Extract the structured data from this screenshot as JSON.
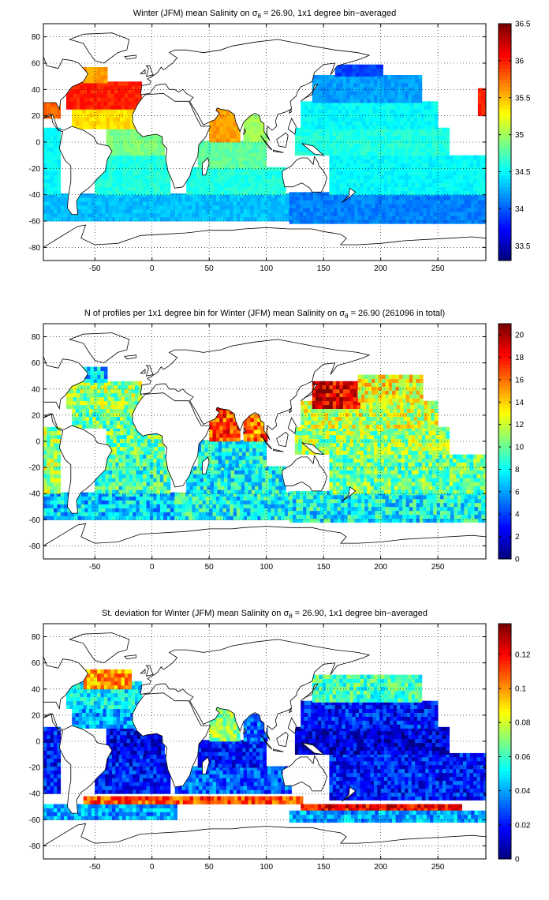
{
  "chart_data": [
    {
      "type": "heatmap",
      "title": "Winter (JFM) mean Salinity on σθ = 26.90, 1x1 degree bin−averaged",
      "title_parts": {
        "pre": "Winter (JFM) mean Salinity on ",
        "sym": "σ",
        "sub": "θ",
        "post": " = 26.90, 1x1 degree bin−averaged"
      },
      "xlim": [
        -95,
        292
      ],
      "ylim": [
        -90,
        90
      ],
      "xticks": [
        -50,
        0,
        50,
        100,
        150,
        200,
        250
      ],
      "yticks": [
        -80,
        -60,
        -40,
        -20,
        0,
        20,
        40,
        60,
        80
      ],
      "grid": true,
      "colorbar": {
        "min": 33.3,
        "max": 36.5,
        "ticks": [
          33.5,
          34,
          34.5,
          35,
          35.5,
          36,
          36.5
        ],
        "tick_labels": [
          "33.5",
          "34",
          "34.5",
          "35",
          "35.5",
          "36",
          "36.5"
        ]
      },
      "regions": [
        {
          "x0": -95,
          "x1": 20,
          "y0": -60,
          "y1": -40,
          "value": 34.3
        },
        {
          "x0": -50,
          "x1": 15,
          "y0": -40,
          "y1": -10,
          "value": 34.6
        },
        {
          "x0": -40,
          "x1": 10,
          "y0": -10,
          "y1": 10,
          "value": 34.9
        },
        {
          "x0": -95,
          "x1": -80,
          "y0": -40,
          "y1": 10,
          "value": 34.5
        },
        {
          "x0": -70,
          "x1": -10,
          "y0": 10,
          "y1": 25,
          "value": 35.4
        },
        {
          "x0": -75,
          "x1": -10,
          "y0": 25,
          "y1": 45,
          "value": 36.0
        },
        {
          "x0": -60,
          "x1": -40,
          "y0": 45,
          "y1": 55,
          "value": 35.6
        },
        {
          "x0": -95,
          "x1": -80,
          "y0": 18,
          "y1": 28,
          "value": 35.8
        },
        {
          "x0": 20,
          "x1": 120,
          "y0": -60,
          "y1": -40,
          "value": 34.3
        },
        {
          "x0": 30,
          "x1": 115,
          "y0": -40,
          "y1": -20,
          "value": 34.6
        },
        {
          "x0": 40,
          "x1": 100,
          "y0": -20,
          "y1": 0,
          "value": 34.8
        },
        {
          "x0": 50,
          "x1": 75,
          "y0": 0,
          "y1": 25,
          "value": 35.6
        },
        {
          "x0": 80,
          "x1": 100,
          "y0": 0,
          "y1": 20,
          "value": 35.0
        },
        {
          "x0": 120,
          "x1": 292,
          "y0": -62,
          "y1": -40,
          "value": 34.1
        },
        {
          "x0": 155,
          "x1": 292,
          "y0": -40,
          "y1": -10,
          "value": 34.5
        },
        {
          "x0": 125,
          "x1": 260,
          "y0": -10,
          "y1": 10,
          "value": 34.6
        },
        {
          "x0": 130,
          "x1": 250,
          "y0": 10,
          "y1": 30,
          "value": 34.5
        },
        {
          "x0": 140,
          "x1": 235,
          "y0": 30,
          "y1": 50,
          "value": 34.2
        },
        {
          "x0": 160,
          "x1": 200,
          "y0": 50,
          "y1": 58,
          "value": 33.9
        },
        {
          "x0": 285,
          "x1": 292,
          "y0": 20,
          "y1": 40,
          "value": 36.0
        }
      ]
    },
    {
      "type": "heatmap",
      "title": "N of profiles per 1x1 degree bin for Winter (JFM) mean Salinity on σθ = 26.90 (261096 in total)",
      "title_parts": {
        "pre": "N of profiles per 1x1 degree bin for Winter (JFM) mean Salinity on ",
        "sym": "σ",
        "sub": "θ",
        "post": " = 26.90 (261096 in total)"
      },
      "xlim": [
        -95,
        292
      ],
      "ylim": [
        -90,
        90
      ],
      "xticks": [
        -50,
        0,
        50,
        100,
        150,
        200,
        250
      ],
      "yticks": [
        -80,
        -60,
        -40,
        -20,
        0,
        20,
        40,
        60,
        80
      ],
      "grid": true,
      "colorbar": {
        "min": 0,
        "max": 21,
        "ticks": [
          0,
          2,
          4,
          6,
          8,
          10,
          12,
          14,
          16,
          18,
          20
        ],
        "tick_labels": [
          "0",
          "2",
          "4",
          "6",
          "8",
          "10",
          "12",
          "14",
          "16",
          "18",
          "20"
        ]
      },
      "regions": [
        {
          "x0": -95,
          "x1": 20,
          "y0": -60,
          "y1": -40,
          "value": 7
        },
        {
          "x0": -50,
          "x1": 15,
          "y0": -40,
          "y1": -10,
          "value": 9
        },
        {
          "x0": -40,
          "x1": 10,
          "y0": -10,
          "y1": 10,
          "value": 10
        },
        {
          "x0": -95,
          "x1": -80,
          "y0": -40,
          "y1": 10,
          "value": 11
        },
        {
          "x0": -70,
          "x1": -10,
          "y0": 10,
          "y1": 25,
          "value": 10
        },
        {
          "x0": -75,
          "x1": -10,
          "y0": 25,
          "y1": 45,
          "value": 11
        },
        {
          "x0": -60,
          "x1": -40,
          "y0": 45,
          "y1": 55,
          "value": 7
        },
        {
          "x0": 20,
          "x1": 120,
          "y0": -60,
          "y1": -40,
          "value": 8
        },
        {
          "x0": 30,
          "x1": 115,
          "y0": -40,
          "y1": -20,
          "value": 8
        },
        {
          "x0": 40,
          "x1": 100,
          "y0": -20,
          "y1": 0,
          "value": 8
        },
        {
          "x0": 50,
          "x1": 75,
          "y0": 0,
          "y1": 25,
          "value": 17
        },
        {
          "x0": 80,
          "x1": 100,
          "y0": 0,
          "y1": 20,
          "value": 16
        },
        {
          "x0": 120,
          "x1": 292,
          "y0": -62,
          "y1": -40,
          "value": 8
        },
        {
          "x0": 155,
          "x1": 292,
          "y0": -40,
          "y1": -10,
          "value": 10
        },
        {
          "x0": 125,
          "x1": 260,
          "y0": -10,
          "y1": 10,
          "value": 11
        },
        {
          "x0": 130,
          "x1": 250,
          "y0": 10,
          "y1": 30,
          "value": 12
        },
        {
          "x0": 140,
          "x1": 180,
          "y0": 25,
          "y1": 45,
          "value": 19
        },
        {
          "x0": 180,
          "x1": 235,
          "y0": 30,
          "y1": 50,
          "value": 13
        }
      ]
    },
    {
      "type": "heatmap",
      "title": "St. deviation for Winter (JFM) mean Salinity on σθ = 26.90, 1x1 degree bin−averaged",
      "title_parts": {
        "pre": "St. deviation for Winter (JFM) mean Salinity on ",
        "sym": "σ",
        "sub": "θ",
        "post": " = 26.90, 1x1 degree bin−averaged"
      },
      "xlim": [
        -95,
        292
      ],
      "ylim": [
        -90,
        90
      ],
      "xticks": [
        -50,
        0,
        50,
        100,
        150,
        200,
        250
      ],
      "yticks": [
        -80,
        -60,
        -40,
        -20,
        0,
        20,
        40,
        60,
        80
      ],
      "grid": true,
      "colorbar": {
        "min": 0,
        "max": 0.138,
        "ticks": [
          0,
          0.02,
          0.04,
          0.06,
          0.08,
          0.1,
          0.12
        ],
        "tick_labels": [
          "0",
          "0.02",
          "0.04",
          "0.06",
          "0.08",
          "0.1",
          "0.12"
        ]
      },
      "regions": [
        {
          "x0": -95,
          "x1": 20,
          "y0": -60,
          "y1": -48,
          "value": 0.04
        },
        {
          "x0": -60,
          "x1": 130,
          "y0": -48,
          "y1": -42,
          "value": 0.11
        },
        {
          "x0": 130,
          "x1": 270,
          "y0": -54,
          "y1": -48,
          "value": 0.12
        },
        {
          "x0": -50,
          "x1": 15,
          "y0": -40,
          "y1": -10,
          "value": 0.02
        },
        {
          "x0": -40,
          "x1": 10,
          "y0": -10,
          "y1": 10,
          "value": 0.015
        },
        {
          "x0": -95,
          "x1": -80,
          "y0": -40,
          "y1": 10,
          "value": 0.02
        },
        {
          "x0": -70,
          "x1": -10,
          "y0": 10,
          "y1": 25,
          "value": 0.04
        },
        {
          "x0": -75,
          "x1": -10,
          "y0": 25,
          "y1": 45,
          "value": 0.05
        },
        {
          "x0": -60,
          "x1": -20,
          "y0": 40,
          "y1": 55,
          "value": 0.1
        },
        {
          "x0": 20,
          "x1": 120,
          "y0": -40,
          "y1": -20,
          "value": 0.03
        },
        {
          "x0": 40,
          "x1": 100,
          "y0": -20,
          "y1": 0,
          "value": 0.02
        },
        {
          "x0": 50,
          "x1": 75,
          "y0": 0,
          "y1": 25,
          "value": 0.07
        },
        {
          "x0": 80,
          "x1": 100,
          "y0": 0,
          "y1": 20,
          "value": 0.03
        },
        {
          "x0": 120,
          "x1": 292,
          "y0": -62,
          "y1": -55,
          "value": 0.04
        },
        {
          "x0": 155,
          "x1": 292,
          "y0": -45,
          "y1": -10,
          "value": 0.02
        },
        {
          "x0": 125,
          "x1": 260,
          "y0": -10,
          "y1": 10,
          "value": 0.012
        },
        {
          "x0": 130,
          "x1": 250,
          "y0": 10,
          "y1": 30,
          "value": 0.02
        },
        {
          "x0": 140,
          "x1": 235,
          "y0": 30,
          "y1": 50,
          "value": 0.06
        }
      ]
    }
  ]
}
